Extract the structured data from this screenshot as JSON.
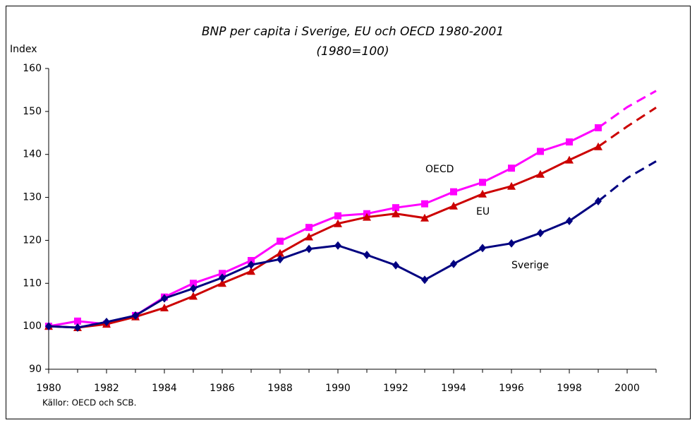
{
  "chart_data": {
    "type": "line",
    "title": "BNP per capita i Sverige, EU och OECD 1980-2001",
    "subtitle": "(1980=100)",
    "y_label": "Index",
    "source": "Källor: OECD och SCB.",
    "x": [
      1980,
      1981,
      1982,
      1983,
      1984,
      1985,
      1986,
      1987,
      1988,
      1989,
      1990,
      1991,
      1992,
      1993,
      1994,
      1995,
      1996,
      1997,
      1998,
      1999,
      2000,
      2001
    ],
    "xlim": [
      1980,
      2001
    ],
    "xticks": [
      1980,
      1982,
      1984,
      1986,
      1988,
      1990,
      1992,
      1994,
      1996,
      1998,
      2000
    ],
    "ylim": [
      90,
      160
    ],
    "yticks": [
      90,
      100,
      110,
      120,
      130,
      140,
      150,
      160
    ],
    "grid": false,
    "dashed_from_x": 1999,
    "series": [
      {
        "name": "OECD",
        "color": "#ff00ff",
        "marker": "square",
        "values": [
          100,
          101.2,
          100.5,
          102.5,
          106.8,
          110,
          112.3,
          115.3,
          119.8,
          123,
          125.7,
          126.2,
          127.6,
          128.5,
          131.3,
          133.5,
          136.8,
          140.7,
          142.9,
          146.2,
          151,
          154.8
        ]
      },
      {
        "name": "EU",
        "color": "#cc0000",
        "marker": "triangle",
        "values": [
          100,
          99.7,
          100.5,
          102.2,
          104.3,
          107,
          110,
          112.8,
          117,
          120.8,
          123.9,
          125.4,
          126.2,
          125.2,
          128,
          130.8,
          132.6,
          135.4,
          138.7,
          141.8,
          146.5,
          150.9
        ]
      },
      {
        "name": "Sverige",
        "color": "#000080",
        "marker": "diamond",
        "values": [
          100,
          99.7,
          101,
          102.5,
          106.5,
          108.8,
          111.3,
          114.3,
          115.6,
          118,
          118.8,
          116.6,
          114.2,
          110.8,
          114.5,
          118.2,
          119.3,
          121.7,
          124.5,
          129.1,
          134.5,
          138.4
        ]
      }
    ]
  }
}
